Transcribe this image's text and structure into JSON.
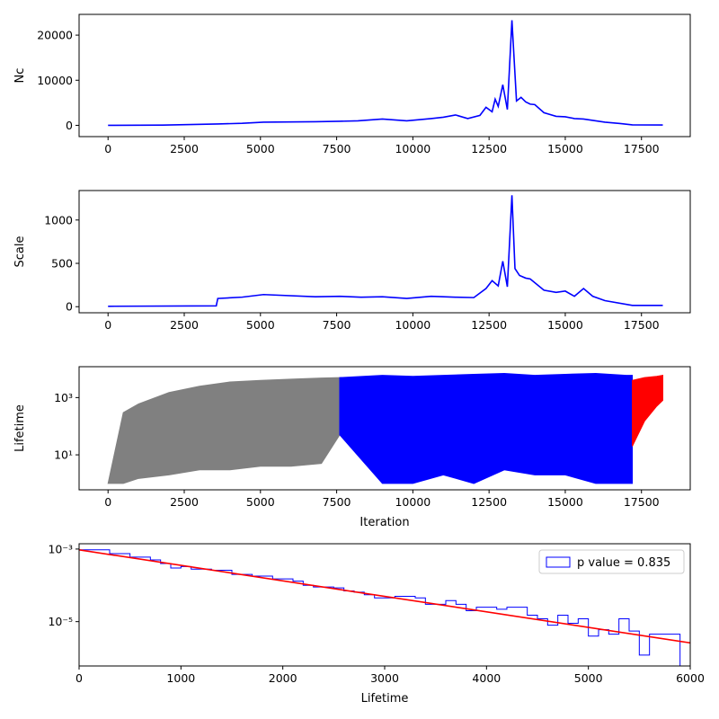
{
  "chart_data": [
    {
      "type": "line",
      "ylabel": "Nc",
      "xlabel": "",
      "xlim": [
        -950,
        19100
      ],
      "ylim": [
        -2500,
        24600
      ],
      "xticks": [
        0,
        2500,
        5000,
        7500,
        10000,
        12500,
        15000,
        17500
      ],
      "yticks": [
        0,
        10000,
        20000
      ],
      "series": [
        {
          "color": "#0000ff",
          "x": [
            0,
            1800,
            3600,
            4400,
            5100,
            6800,
            7600,
            8200,
            9000,
            9800,
            10600,
            11000,
            11400,
            11800,
            12200,
            12400,
            12600,
            12700,
            12800,
            12950,
            13100,
            13250,
            13400,
            13550,
            13700,
            13850,
            14000,
            14300,
            14700,
            15000,
            15300,
            15600,
            15900,
            16300,
            16800,
            17200,
            18200
          ],
          "y": [
            0,
            60,
            300,
            450,
            700,
            800,
            900,
            1000,
            1400,
            1000,
            1500,
            1800,
            2300,
            1500,
            2200,
            4000,
            3000,
            5800,
            4200,
            9000,
            3500,
            23300,
            5400,
            6200,
            5200,
            4700,
            4600,
            2800,
            2000,
            1900,
            1500,
            1400,
            1100,
            700,
            400,
            100,
            80
          ]
        }
      ]
    },
    {
      "type": "line",
      "ylabel": "Scale",
      "xlabel": "",
      "xlim": [
        -950,
        19100
      ],
      "ylim": [
        -70,
        1340
      ],
      "xticks": [
        0,
        2500,
        5000,
        7500,
        10000,
        12500,
        15000,
        17500
      ],
      "yticks": [
        0,
        500,
        1000
      ],
      "series": [
        {
          "color": "#0000ff",
          "x": [
            0,
            3550,
            3600,
            4400,
            5100,
            6800,
            7600,
            8300,
            9000,
            9800,
            10600,
            11400,
            12000,
            12400,
            12600,
            12800,
            12950,
            13100,
            13250,
            13350,
            13500,
            13700,
            13850,
            14300,
            14700,
            15000,
            15300,
            15600,
            15900,
            16300,
            17200,
            18200
          ],
          "y": [
            5,
            10,
            95,
            110,
            140,
            115,
            120,
            110,
            115,
            95,
            120,
            110,
            105,
            210,
            300,
            240,
            525,
            230,
            1285,
            440,
            360,
            330,
            320,
            190,
            165,
            180,
            120,
            210,
            120,
            70,
            15,
            15
          ]
        }
      ]
    },
    {
      "type": "line",
      "ylabel": "Lifetime",
      "xlabel": "Iteration",
      "yscale": "log",
      "xlim": [
        -950,
        19100
      ],
      "ylim": [
        0.6,
        12000
      ],
      "xticks": [
        0,
        2500,
        5000,
        7500,
        10000,
        12500,
        15000,
        17500
      ],
      "yticks": [
        10,
        1000
      ],
      "ytick_labels": [
        "10¹",
        "10³"
      ],
      "series": [
        {
          "color": "#808080",
          "x": [
            0,
            500,
            1000,
            2000,
            3000,
            4000,
            5000,
            6000,
            7000,
            7600
          ],
          "y": [
            1,
            300,
            600,
            1500,
            2500,
            3500,
            4000,
            4400,
            4800,
            5000
          ],
          "ymin": [
            1,
            1,
            1.5,
            2,
            3,
            3,
            4,
            4,
            5,
            50
          ]
        },
        {
          "color": "#0000ff",
          "x": [
            7600,
            9000,
            10000,
            11000,
            12000,
            13000,
            14000,
            15000,
            16000,
            17000,
            17200
          ],
          "y": [
            5000,
            6000,
            5500,
            6000,
            6500,
            7000,
            6000,
            6500,
            7000,
            6000,
            6000
          ],
          "ymin": [
            50,
            1,
            1,
            2,
            1,
            3,
            2,
            2,
            1,
            1,
            1
          ]
        },
        {
          "color": "#ff0000",
          "x": [
            17200,
            17600,
            18000,
            18200
          ],
          "y": [
            4000,
            5000,
            5500,
            6000
          ],
          "ymin": [
            20,
            150,
            500,
            800
          ]
        }
      ]
    },
    {
      "type": "histogram",
      "ylabel": "",
      "xlabel": "Lifetime",
      "yscale": "log",
      "xlim": [
        0,
        6000
      ],
      "ylim": [
        6e-07,
        0.0014
      ],
      "xticks": [
        0,
        1000,
        2000,
        3000,
        4000,
        5000,
        6000
      ],
      "yticks": [
        1e-05,
        0.001
      ],
      "ytick_labels": [
        "10⁻⁵",
        "10⁻³"
      ],
      "legend": {
        "label": "p value = 0.835",
        "placement": "top-right"
      },
      "series": [
        {
          "name": "p value = 0.835",
          "kind": "step-histogram",
          "color": "#0000ff",
          "bin_edges": [
            0,
            300,
            500,
            700,
            800,
            900,
            1000,
            1100,
            1300,
            1500,
            1700,
            1900,
            2100,
            2200,
            2300,
            2500,
            2600,
            2700,
            2800,
            2900,
            3100,
            3300,
            3400,
            3600,
            3700,
            3800,
            3900,
            4100,
            4200,
            4400,
            4500,
            4600,
            4700,
            4800,
            4900,
            5000,
            5100,
            5200,
            5300,
            5400,
            5500,
            5600,
            5800,
            5900
          ],
          "density": [
            0.00095,
            0.00075,
            0.0006,
            0.0005,
            0.0004,
            0.0003,
            0.00033,
            0.00028,
            0.00026,
            0.0002,
            0.00018,
            0.00015,
            0.00013,
            0.0001,
            9e-05,
            8.5e-05,
            7e-05,
            6.5e-05,
            5.5e-05,
            4.5e-05,
            5e-05,
            4.5e-05,
            3e-05,
            3.8e-05,
            3e-05,
            2e-05,
            2.5e-05,
            2.2e-05,
            2.5e-05,
            1.5e-05,
            1.2e-05,
            8e-06,
            1.5e-05,
            9e-06,
            1.2e-05,
            4e-06,
            6e-06,
            4.5e-06,
            1.2e-05,
            5.5e-06,
            1.2e-06,
            4.5e-06,
            4.5e-06
          ]
        },
        {
          "kind": "fit-line",
          "color": "#ff0000",
          "x": [
            0,
            6000
          ],
          "y": [
            0.00095,
            2.6e-06
          ]
        }
      ]
    }
  ]
}
